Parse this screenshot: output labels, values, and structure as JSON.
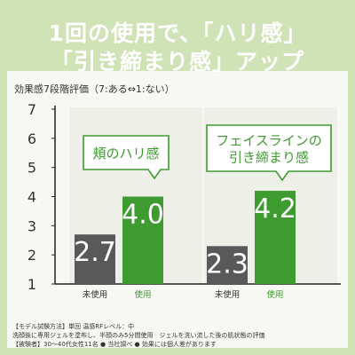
{
  "header": {
    "line1": "1回の使用で、「ハリ感」",
    "line2": "「引き締まり感」アップ"
  },
  "colors": {
    "accent": "#3e9b2f",
    "unused": "#595959",
    "band": "#cfe3b6",
    "panel": "#efefea",
    "axis": "#222222"
  },
  "chart_data": {
    "type": "bar",
    "title": "",
    "subtitle": "効果感7段階評価（7:ある⇔1:ない）",
    "ylim": [
      1,
      7
    ],
    "yticks": [
      "1",
      "2",
      "3",
      "4",
      "5",
      "6",
      "7"
    ],
    "categories": [
      "未使用",
      "使用",
      "未使用",
      "使用"
    ],
    "groups": [
      {
        "label": "頬のハリ感",
        "bars": [
          {
            "category": "未使用",
            "value": 2.7,
            "value_label": "2.7"
          },
          {
            "category": "使用",
            "value": 4.0,
            "value_label": "4.0"
          }
        ]
      },
      {
        "label": "フェイスラインの\n引き締まり感",
        "bars": [
          {
            "category": "未使用",
            "value": 2.3,
            "value_label": "2.3"
          },
          {
            "category": "使用",
            "value": 4.2,
            "value_label": "4.2"
          }
        ]
      }
    ]
  },
  "notes": [
    "【モデル試験方法】単回  温感RFレベル：中",
    "洗顔後に専用ジェルを塗布し、半顔のみ5分間使用　ジェルを洗い流した後の肌状態の評価",
    "【被験者】30〜40代女性11名 ● 当社調べ ● 効果には個人差があります"
  ]
}
